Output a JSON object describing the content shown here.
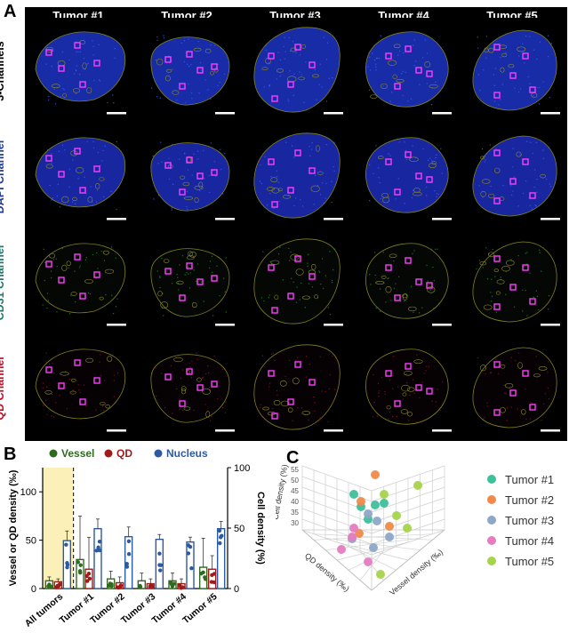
{
  "panel_labels": {
    "a": "A",
    "b": "B",
    "c": "C"
  },
  "grid": {
    "columns": [
      "Tumor #1",
      "Tumor #2",
      "Tumor #3",
      "Tumor #4",
      "Tumor #5"
    ],
    "rows": [
      {
        "label": "3-Channels",
        "color": "#000000"
      },
      {
        "label": "DAPI Channel",
        "color": "#1f3d99"
      },
      {
        "label": "CD31 Channel",
        "color": "#1c7a6a"
      },
      {
        "label": "QD Channel",
        "color": "#c0102a"
      }
    ],
    "colors": {
      "roi": "#ff3cff",
      "scale_bar": "#ffffff",
      "outline": "#8a8a20"
    }
  },
  "chart_data": [
    {
      "type": "bar",
      "legend": [
        "Vessel",
        "QD",
        "Nucleus"
      ],
      "legend_colors": {
        "Vessel": "#2e6b1f",
        "QD": "#a01a1a",
        "Nucleus": "#2c5aa0"
      },
      "categories": [
        "All tumors",
        "Tumor #1",
        "Tumor #2",
        "Tumor #3",
        "Tumor #4",
        "Tumor #5"
      ],
      "ylabel": "Vessel or QD density (‰)",
      "y2label": "Cell density (%)",
      "ylim": [
        0,
        125
      ],
      "yticks": [
        "0",
        "50",
        "100"
      ],
      "y2lim": [
        0,
        100
      ],
      "y2ticks": [
        "0",
        "50",
        "100"
      ],
      "series": [
        {
          "name": "Vessel",
          "values": [
            8,
            30,
            10,
            8,
            8,
            22
          ],
          "err": [
            4,
            45,
            8,
            8,
            8,
            30
          ]
        },
        {
          "name": "QD",
          "values": [
            7,
            20,
            6,
            5,
            5,
            20
          ],
          "err": [
            3,
            33,
            6,
            5,
            5,
            14
          ]
        },
        {
          "name": "Nucleus",
          "values": [
            36,
            45,
            39,
            37,
            35,
            45
          ],
          "err": [
            8,
            8,
            8,
            4,
            4,
            6
          ]
        }
      ]
    },
    {
      "type": "scatter",
      "xlabel": "Vessel density (‰)",
      "ylabel": "QD density (‰)",
      "zlabel": "Cell density (%)",
      "zticks": [
        "30",
        "35",
        "40",
        "45",
        "50",
        "55"
      ],
      "legend": [
        "Tumor #1",
        "Tumor #2",
        "Tumor #3",
        "Tumor #4",
        "Tumor #5"
      ],
      "legend_colors": [
        "#3fbf9a",
        "#ef8a4a",
        "#8ea6c8",
        "#e57cc2",
        "#a6d44c"
      ]
    }
  ]
}
